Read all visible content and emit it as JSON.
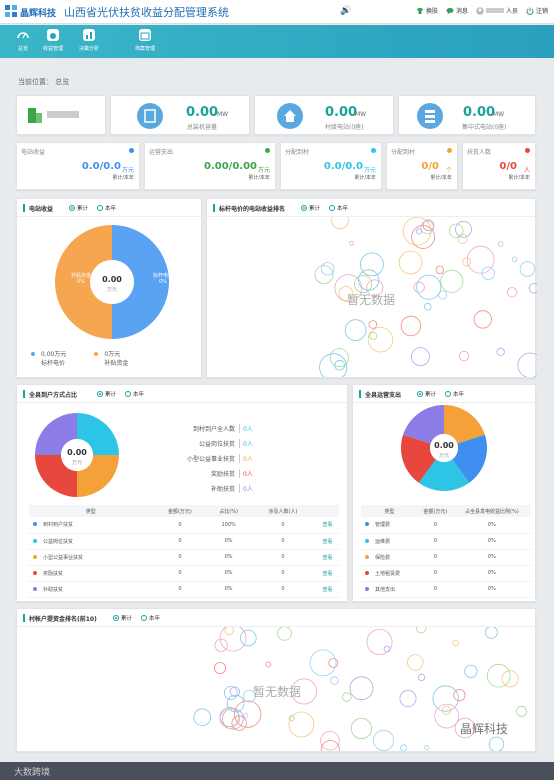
{
  "header": {
    "brand": "晶辉科技",
    "title": "山西省光伏扶贫收益分配管理系统",
    "actions": [
      {
        "label": "换肤",
        "icon": "shirt-icon"
      },
      {
        "label": "消息",
        "icon": "message-icon"
      },
      {
        "label": "人员",
        "icon": "user-avatar"
      },
      {
        "label": "注销",
        "icon": "power-icon"
      }
    ]
  },
  "nav": [
    {
      "label": "总览",
      "icon": "dashboard-icon"
    },
    {
      "label": "收益管理",
      "icon": "money-bag-icon"
    },
    {
      "label": "决策分析",
      "icon": "analysis-icon"
    },
    {
      "label": "档案管理",
      "icon": "archive-icon"
    }
  ],
  "breadcrumb": "当前位置： 总览",
  "kpis": [
    {
      "value": "0.00",
      "unit": "MW",
      "label": "总装机容量",
      "icon": "solar-panel-icon",
      "color": "#5aa8e0"
    },
    {
      "value": "0.00",
      "unit": "MW",
      "label": "村级电站(0座)",
      "icon": "house-icon",
      "color": "#5aa8e0"
    },
    {
      "value": "0.00",
      "unit": "MW",
      "label": "集中式电站(0座)",
      "icon": "server-icon",
      "color": "#5aa8e0"
    }
  ],
  "stats": [
    {
      "title": "电站收益",
      "value": "0.0/0.0",
      "unit": "万元",
      "footer": "累计/本年",
      "color": "#3e8ff0",
      "dot": "#3e8ff0"
    },
    {
      "title": "运营支出",
      "value": "0.00/0.00",
      "unit": "万元",
      "footer": "累计/本年",
      "color": "#3aa64a",
      "dot": "#3aa64a"
    },
    {
      "title": "分配到村",
      "value": "0.0/0.0",
      "unit": "万元",
      "footer": "累计/本年",
      "color": "#2ec4e6",
      "dot": "#2ec4e6"
    },
    {
      "title": "分配到村",
      "value": "0/0",
      "unit": "个",
      "footer": "累计/本年",
      "color": "#f5a13a",
      "dot": "#f5a13a"
    },
    {
      "title": "扶贫人数",
      "value": "0/0",
      "unit": "人",
      "footer": "累计/本年",
      "color": "#e8473d",
      "dot": "#e8473d"
    }
  ],
  "radio": {
    "cumulative": "累计",
    "thisyear": "本年"
  },
  "income": {
    "title": "电站收益",
    "center_value": "0.00",
    "center_unit": "万元",
    "slices": [
      {
        "label": "补贴资金",
        "pct": "0%",
        "color": "#f5a64f"
      },
      {
        "label": "标杆电价",
        "pct": "0%",
        "color": "#5aa2f2"
      }
    ],
    "legend": [
      {
        "value": "0.00万元",
        "label": "标杆电价",
        "color": "#5aa2f2"
      },
      {
        "value": "0万元",
        "label": "补贴资金",
        "color": "#f5a64f"
      }
    ]
  },
  "benchmark": {
    "title": "标杆电价的电站收益排名",
    "empty": "暂无数据"
  },
  "county": {
    "title": "全县到户方式占比",
    "center_value": "0.00",
    "center_unit": "万元",
    "legend": [
      {
        "label": "到村到户全人数",
        "value": "0人",
        "color": "#2ec4e6"
      },
      {
        "label": "公益岗位扶贫",
        "value": "0人",
        "color": "#2ec4e6"
      },
      {
        "label": "小型公益事业扶贫",
        "value": "0人",
        "color": "#f5a13a"
      },
      {
        "label": "奖励扶贫",
        "value": "0人",
        "color": "#e8473d"
      },
      {
        "label": "补助扶贫",
        "value": "0人",
        "color": "#8c7ce6"
      }
    ],
    "table": {
      "headers": [
        "类型",
        "金额(万元)",
        "占比(%)",
        "涉及人数(人)",
        ""
      ],
      "rows": [
        {
          "type": "到村到户扶贫",
          "amount": "0",
          "pct": "100%",
          "people": "0",
          "action": "查看",
          "color": "#3e8ff0"
        },
        {
          "type": "公益岗位扶贫",
          "amount": "0",
          "pct": "0%",
          "people": "0",
          "action": "查看",
          "color": "#2ec4e6"
        },
        {
          "type": "小型公益事业扶贫",
          "amount": "0",
          "pct": "0%",
          "people": "0",
          "action": "查看",
          "color": "#f5a13a"
        },
        {
          "type": "奖励扶贫",
          "amount": "0",
          "pct": "0%",
          "people": "0",
          "action": "查看",
          "color": "#e8473d"
        },
        {
          "type": "补助扶贫",
          "amount": "0",
          "pct": "0%",
          "people": "0",
          "action": "查看",
          "color": "#8c7ce6"
        }
      ]
    }
  },
  "expense": {
    "title": "全县运营支出",
    "center_value": "0.00",
    "center_unit": "万元",
    "table": {
      "headers": [
        "类型",
        "金额(万元)",
        "占全县发电收益比例(%)"
      ],
      "rows": [
        {
          "type": "管理费",
          "amount": "0",
          "pct": "0%",
          "color": "#3e8ff0"
        },
        {
          "type": "运维费",
          "amount": "0",
          "pct": "0%",
          "color": "#2ec4e6"
        },
        {
          "type": "保险费",
          "amount": "0",
          "pct": "0%",
          "color": "#f5a13a"
        },
        {
          "type": "土地租赁费",
          "amount": "0",
          "pct": "0%",
          "color": "#e8473d"
        },
        {
          "type": "其他支出",
          "amount": "0",
          "pct": "0%",
          "color": "#8c7ce6"
        }
      ]
    }
  },
  "village": {
    "title": "村帐户提资金排名(前10)",
    "empty": "暂无数据"
  },
  "footer": {
    "text": "大数跨境"
  },
  "watermark": "晶辉科技"
}
